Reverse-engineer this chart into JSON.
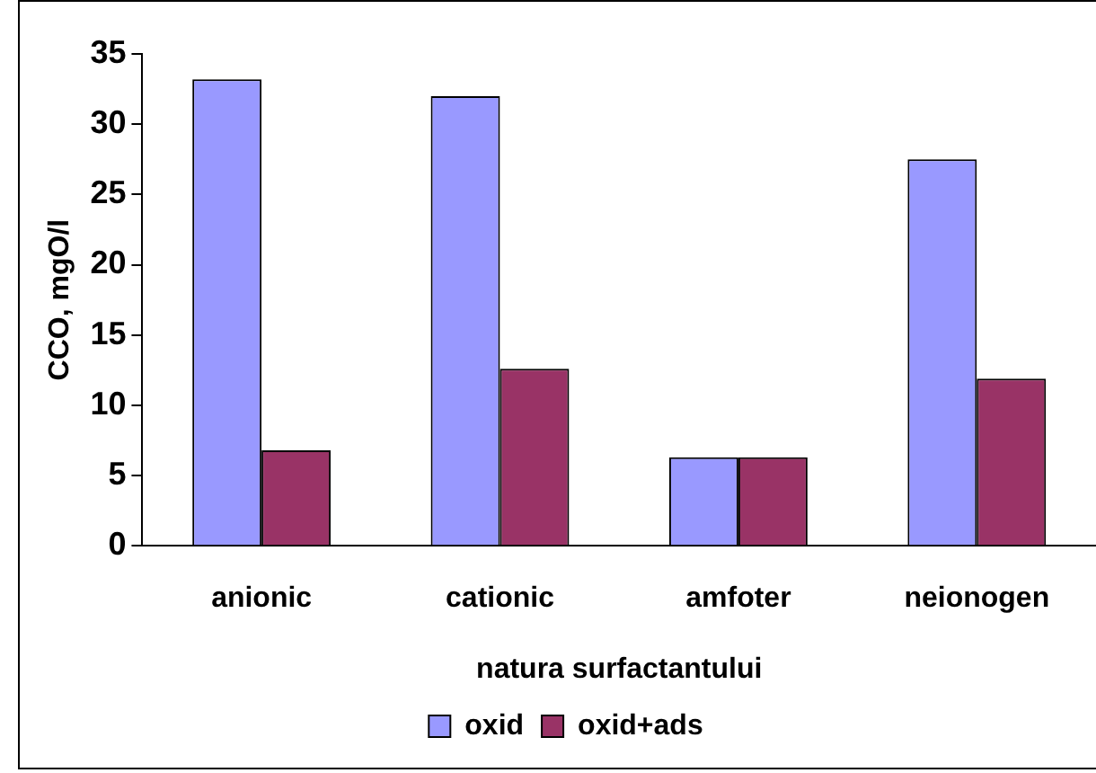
{
  "chart_data": {
    "type": "bar",
    "xlabel": "natura surfactantului",
    "ylabel": "CCO, mgO/l",
    "categories": [
      "anionic",
      "cationic",
      "amfoter",
      "neionogen"
    ],
    "series": [
      {
        "name": "oxid",
        "color": "#9999ff",
        "values": [
          33.2,
          32.0,
          6.3,
          27.5
        ]
      },
      {
        "name": "oxid+ads",
        "color": "#993366",
        "values": [
          6.8,
          12.6,
          6.3,
          11.9
        ]
      }
    ],
    "ylim": [
      0,
      35
    ],
    "yticks": [
      0,
      5,
      10,
      15,
      20,
      25,
      30,
      35
    ],
    "grid": false,
    "legend": "bottom"
  }
}
